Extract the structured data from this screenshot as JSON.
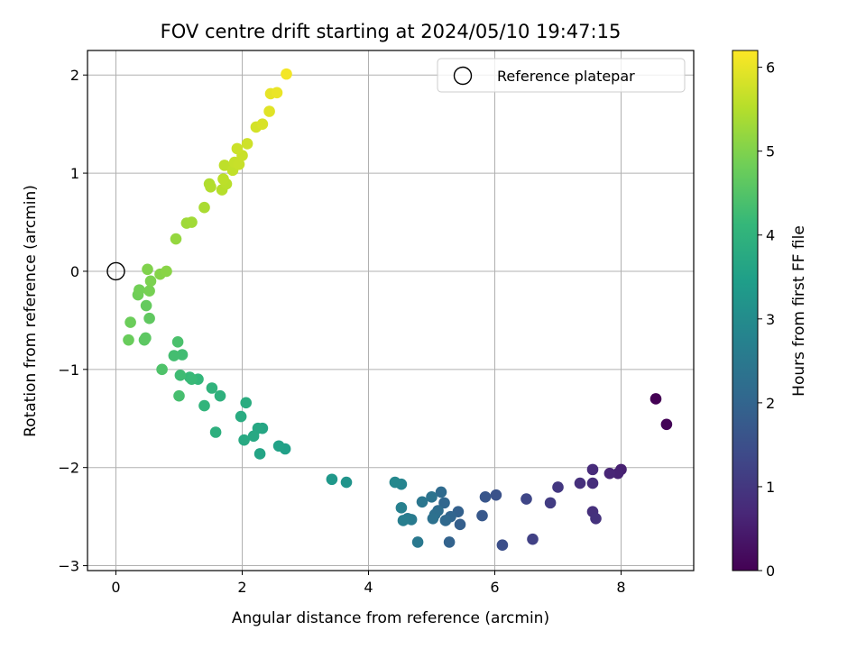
{
  "chart_data": {
    "type": "scatter",
    "title": "FOV centre drift starting at 2024/05/10 19:47:15",
    "xlabel": "Angular distance from reference (arcmin)",
    "ylabel": "Rotation from reference (arcmin)",
    "xlim": [
      -0.45,
      9.15
    ],
    "ylim": [
      -3.05,
      2.25
    ],
    "xticks": [
      0,
      2,
      4,
      6,
      8
    ],
    "yticks": [
      -3,
      -2,
      -1,
      0,
      1,
      2
    ],
    "grid": true,
    "legend": {
      "placement": "upper-right",
      "label": "Reference platepar"
    },
    "reference_point": {
      "x": 0,
      "y": 0
    },
    "colorbar": {
      "label": "Hours from first FF file",
      "range": [
        0,
        6.2
      ],
      "ticks": [
        0,
        1,
        2,
        3,
        4,
        5,
        6
      ],
      "colormap": "viridis"
    },
    "colorscale": [
      "#440154",
      "#482878",
      "#3e4a89",
      "#31688e",
      "#26828e",
      "#1f9e89",
      "#35b779",
      "#6ece58",
      "#b5de2b",
      "#fde725"
    ],
    "points": [
      {
        "x": 8.55,
        "y": -1.3,
        "t": 0.0
      },
      {
        "x": 8.72,
        "y": -1.56,
        "t": 0.05
      },
      {
        "x": 8.0,
        "y": -2.02,
        "t": 0.55
      },
      {
        "x": 7.95,
        "y": -2.06,
        "t": 0.6
      },
      {
        "x": 7.82,
        "y": -2.06,
        "t": 0.65
      },
      {
        "x": 7.55,
        "y": -2.02,
        "t": 0.75
      },
      {
        "x": 7.55,
        "y": -2.16,
        "t": 0.8
      },
      {
        "x": 7.35,
        "y": -2.16,
        "t": 0.85
      },
      {
        "x": 7.55,
        "y": -2.45,
        "t": 0.85
      },
      {
        "x": 7.6,
        "y": -2.52,
        "t": 0.9
      },
      {
        "x": 7.0,
        "y": -2.2,
        "t": 1.0
      },
      {
        "x": 6.88,
        "y": -2.36,
        "t": 1.1
      },
      {
        "x": 6.6,
        "y": -2.73,
        "t": 1.2
      },
      {
        "x": 6.5,
        "y": -2.32,
        "t": 1.3
      },
      {
        "x": 6.12,
        "y": -2.79,
        "t": 1.5
      },
      {
        "x": 6.02,
        "y": -2.28,
        "t": 1.55
      },
      {
        "x": 5.85,
        "y": -2.3,
        "t": 1.65
      },
      {
        "x": 5.8,
        "y": -2.49,
        "t": 1.7
      },
      {
        "x": 5.45,
        "y": -2.58,
        "t": 1.85
      },
      {
        "x": 5.42,
        "y": -2.45,
        "t": 1.9
      },
      {
        "x": 5.28,
        "y": -2.76,
        "t": 1.95
      },
      {
        "x": 5.3,
        "y": -2.5,
        "t": 2.0
      },
      {
        "x": 5.2,
        "y": -2.36,
        "t": 2.05
      },
      {
        "x": 5.22,
        "y": -2.54,
        "t": 2.1
      },
      {
        "x": 5.15,
        "y": -2.25,
        "t": 2.15
      },
      {
        "x": 5.1,
        "y": -2.44,
        "t": 2.2
      },
      {
        "x": 5.05,
        "y": -2.48,
        "t": 2.25
      },
      {
        "x": 5.02,
        "y": -2.52,
        "t": 2.3
      },
      {
        "x": 5.0,
        "y": -2.3,
        "t": 2.35
      },
      {
        "x": 4.85,
        "y": -2.35,
        "t": 2.45
      },
      {
        "x": 4.78,
        "y": -2.76,
        "t": 2.5
      },
      {
        "x": 4.68,
        "y": -2.53,
        "t": 2.55
      },
      {
        "x": 4.62,
        "y": -2.52,
        "t": 2.6
      },
      {
        "x": 4.55,
        "y": -2.54,
        "t": 2.65
      },
      {
        "x": 4.52,
        "y": -2.41,
        "t": 2.7
      },
      {
        "x": 4.52,
        "y": -2.17,
        "t": 2.8
      },
      {
        "x": 4.42,
        "y": -2.15,
        "t": 2.9
      },
      {
        "x": 3.65,
        "y": -2.15,
        "t": 3.2
      },
      {
        "x": 3.42,
        "y": -2.12,
        "t": 3.3
      },
      {
        "x": 2.68,
        "y": -1.81,
        "t": 3.5
      },
      {
        "x": 2.58,
        "y": -1.78,
        "t": 3.55
      },
      {
        "x": 2.28,
        "y": -1.86,
        "t": 3.6
      },
      {
        "x": 2.32,
        "y": -1.6,
        "t": 3.65
      },
      {
        "x": 2.25,
        "y": -1.6,
        "t": 3.7
      },
      {
        "x": 2.18,
        "y": -1.68,
        "t": 3.72
      },
      {
        "x": 2.03,
        "y": -1.72,
        "t": 3.75
      },
      {
        "x": 1.98,
        "y": -1.48,
        "t": 3.8
      },
      {
        "x": 2.06,
        "y": -1.34,
        "t": 3.82
      },
      {
        "x": 1.58,
        "y": -1.64,
        "t": 3.9
      },
      {
        "x": 1.65,
        "y": -1.27,
        "t": 3.95
      },
      {
        "x": 1.52,
        "y": -1.19,
        "t": 4.0
      },
      {
        "x": 1.4,
        "y": -1.37,
        "t": 4.05
      },
      {
        "x": 1.3,
        "y": -1.1,
        "t": 4.1
      },
      {
        "x": 1.17,
        "y": -1.08,
        "t": 4.15
      },
      {
        "x": 1.2,
        "y": -1.1,
        "t": 4.18
      },
      {
        "x": 1.02,
        "y": -1.06,
        "t": 4.25
      },
      {
        "x": 1.05,
        "y": -0.85,
        "t": 4.28
      },
      {
        "x": 0.92,
        "y": -0.86,
        "t": 4.32
      },
      {
        "x": 1.0,
        "y": -1.27,
        "t": 4.35
      },
      {
        "x": 0.98,
        "y": -0.72,
        "t": 4.4
      },
      {
        "x": 0.73,
        "y": -1.0,
        "t": 4.45
      },
      {
        "x": 0.45,
        "y": -0.7,
        "t": 4.6
      },
      {
        "x": 0.47,
        "y": -0.68,
        "t": 4.62
      },
      {
        "x": 0.53,
        "y": -0.48,
        "t": 4.65
      },
      {
        "x": 0.48,
        "y": -0.35,
        "t": 4.7
      },
      {
        "x": 0.2,
        "y": -0.7,
        "t": 4.75
      },
      {
        "x": 0.23,
        "y": -0.52,
        "t": 4.78
      },
      {
        "x": 0.35,
        "y": -0.24,
        "t": 4.82
      },
      {
        "x": 0.37,
        "y": -0.19,
        "t": 4.85
      },
      {
        "x": 0.53,
        "y": -0.2,
        "t": 4.9
      },
      {
        "x": 0.55,
        "y": -0.1,
        "t": 4.95
      },
      {
        "x": 0.5,
        "y": 0.02,
        "t": 5.0
      },
      {
        "x": 0.7,
        "y": -0.03,
        "t": 5.05
      },
      {
        "x": 0.8,
        "y": 0.0,
        "t": 5.08
      },
      {
        "x": 0.95,
        "y": 0.33,
        "t": 5.2
      },
      {
        "x": 1.12,
        "y": 0.49,
        "t": 5.3
      },
      {
        "x": 1.2,
        "y": 0.5,
        "t": 5.32
      },
      {
        "x": 1.4,
        "y": 0.65,
        "t": 5.4
      },
      {
        "x": 1.48,
        "y": 0.89,
        "t": 5.45
      },
      {
        "x": 1.5,
        "y": 0.86,
        "t": 5.48
      },
      {
        "x": 1.68,
        "y": 0.83,
        "t": 5.52
      },
      {
        "x": 1.75,
        "y": 0.89,
        "t": 5.55
      },
      {
        "x": 1.7,
        "y": 0.94,
        "t": 5.58
      },
      {
        "x": 1.72,
        "y": 1.08,
        "t": 5.6
      },
      {
        "x": 1.85,
        "y": 1.03,
        "t": 5.63
      },
      {
        "x": 1.88,
        "y": 1.11,
        "t": 5.66
      },
      {
        "x": 1.95,
        "y": 1.09,
        "t": 5.68
      },
      {
        "x": 2.0,
        "y": 1.18,
        "t": 5.7
      },
      {
        "x": 1.92,
        "y": 1.25,
        "t": 5.72
      },
      {
        "x": 2.08,
        "y": 1.3,
        "t": 5.75
      },
      {
        "x": 2.22,
        "y": 1.47,
        "t": 5.8
      },
      {
        "x": 2.32,
        "y": 1.5,
        "t": 5.85
      },
      {
        "x": 2.43,
        "y": 1.63,
        "t": 5.92
      },
      {
        "x": 2.45,
        "y": 1.81,
        "t": 5.98
      },
      {
        "x": 2.55,
        "y": 1.82,
        "t": 6.02
      },
      {
        "x": 2.7,
        "y": 2.01,
        "t": 6.1
      }
    ]
  }
}
